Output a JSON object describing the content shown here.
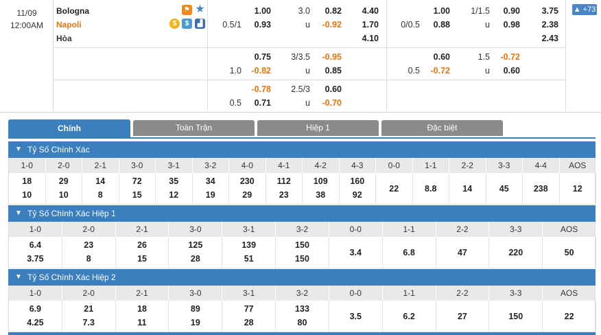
{
  "match": {
    "date": "11/09",
    "time": "12:00AM",
    "home": "Bologna",
    "away": "Napoli",
    "draw": "Hòa"
  },
  "badge": "+73",
  "full_time": {
    "rows": [
      {
        "hdp_home": "1.00",
        "line": "",
        "hdp_away": "",
        "ou_line": "3.0",
        "ou_over": "0.82",
        "x12_home": "4.40"
      },
      {
        "hdp_line": "0.5/1",
        "hdp_away": "0.93",
        "ou_u": "u",
        "ou_under": "-0.92",
        "x12_away": "1.70"
      },
      {
        "x12_draw": "4.10"
      }
    ],
    "row2": {
      "hdp_home": "0.75",
      "ou_line": "3/3.5",
      "ou_over": "-0.95",
      "hdp_line": "1.0",
      "hdp_away": "-0.82",
      "ou_u": "u",
      "ou_under": "0.85"
    },
    "row3": {
      "hdp_home": "-0.78",
      "ou_line": "2.5/3",
      "ou_over": "0.60",
      "hdp_line": "0.5",
      "hdp_away": "0.71",
      "ou_u": "u",
      "ou_under": "-0.70"
    }
  },
  "first_half": {
    "row1": {
      "hdp_home": "1.00",
      "ou_line": "1/1.5",
      "ou_over": "0.90",
      "x12_home": "3.75",
      "hdp_line": "0/0.5",
      "hdp_away": "0.88",
      "ou_u": "u",
      "ou_under": "0.98",
      "x12_away": "2.38",
      "x12_draw": "2.43"
    },
    "row2": {
      "hdp_home": "0.60",
      "ou_line": "1.5",
      "ou_over": "-0.72",
      "hdp_line": "0.5",
      "hdp_away": "-0.72",
      "ou_u": "u",
      "ou_under": "0.60"
    }
  },
  "tabs": [
    "Chính",
    "Toàn Trận",
    "Hiệp 1",
    "Đặc biệt"
  ],
  "sections": [
    {
      "title": "Tỷ Số Chính Xác",
      "headers": [
        "1-0",
        "2-0",
        "2-1",
        "3-0",
        "3-1",
        "3-2",
        "4-0",
        "4-1",
        "4-2",
        "4-3",
        "0-0",
        "1-1",
        "2-2",
        "3-3",
        "4-4",
        "AOS"
      ],
      "top": [
        "18",
        "29",
        "14",
        "72",
        "35",
        "34",
        "230",
        "112",
        "109",
        "160",
        "22",
        "8.8",
        "14",
        "45",
        "238",
        "12"
      ],
      "bottom": [
        "10",
        "10",
        "8",
        "15",
        "12",
        "19",
        "29",
        "23",
        "38",
        "92",
        "",
        "",
        "",
        "",
        "",
        ""
      ]
    },
    {
      "title": "Tỷ Số Chính Xác Hiệp 1",
      "headers": [
        "1-0",
        "2-0",
        "2-1",
        "3-0",
        "3-1",
        "3-2",
        "0-0",
        "1-1",
        "2-2",
        "3-3",
        "AOS"
      ],
      "top": [
        "6.4",
        "23",
        "26",
        "125",
        "139",
        "150",
        "3.4",
        "6.8",
        "47",
        "220",
        "50"
      ],
      "bottom": [
        "3.75",
        "8",
        "15",
        "28",
        "51",
        "150",
        "",
        "",
        "",
        "",
        ""
      ]
    },
    {
      "title": "Tỷ Số Chính Xác Hiệp 2",
      "headers": [
        "1-0",
        "2-0",
        "2-1",
        "3-0",
        "3-1",
        "3-2",
        "0-0",
        "1-1",
        "2-2",
        "3-3",
        "AOS"
      ],
      "top": [
        "6.9",
        "21",
        "18",
        "89",
        "77",
        "133",
        "3.5",
        "6.2",
        "27",
        "150",
        "22"
      ],
      "bottom": [
        "4.25",
        "7.3",
        "11",
        "19",
        "28",
        "80",
        "",
        "",
        "",
        "",
        ""
      ]
    }
  ],
  "colors": {
    "accent": "#3b7fbf",
    "negative": "#e8750a",
    "tab_inactive": "#8a8a8a"
  }
}
